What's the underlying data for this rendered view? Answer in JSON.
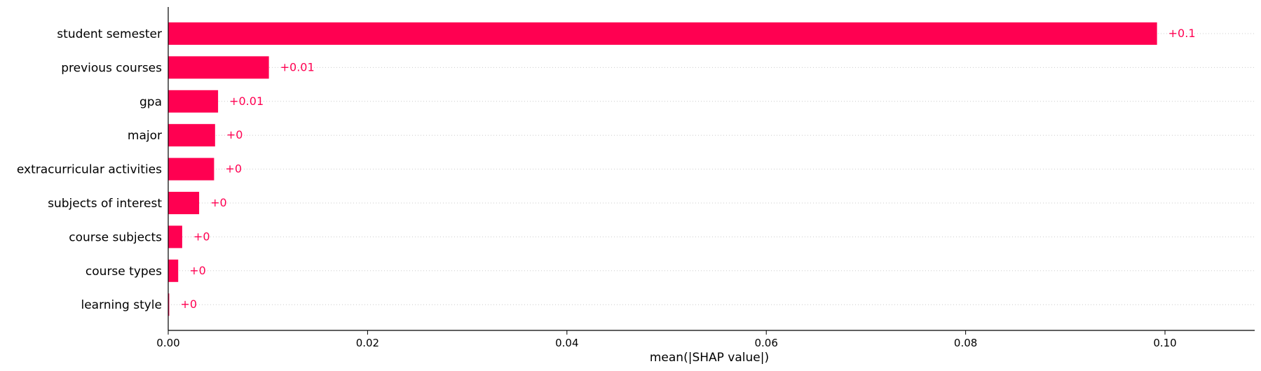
{
  "chart_data": {
    "type": "bar",
    "orientation": "horizontal",
    "categories": [
      "student semester",
      "previous courses",
      "gpa",
      "major",
      "extracurricular activities",
      "subjects of interest",
      "course subjects",
      "course types",
      "learning style"
    ],
    "values": [
      0.0992,
      0.0101,
      0.005,
      0.0047,
      0.0046,
      0.0031,
      0.0014,
      0.001,
      0.0001
    ],
    "data_labels": [
      "+0.1",
      "+0.01",
      "+0.01",
      "+0",
      "+0",
      "+0",
      "+0",
      "+0",
      "+0"
    ],
    "xlabel": "mean(|SHAP value|)",
    "ylabel": "",
    "title": "",
    "xlim": [
      0,
      0.109
    ],
    "xticks": [
      0.0,
      0.02,
      0.04,
      0.06,
      0.08,
      0.1
    ],
    "xtick_labels": [
      "0.00",
      "0.02",
      "0.04",
      "0.06",
      "0.08",
      "0.10"
    ],
    "grid": "horizontal dotted guide per row",
    "legend": "none",
    "colors": {
      "bar": "#ff0051",
      "data_label": "#ff0051",
      "axis": "#000000",
      "grid": "#cccccc"
    }
  }
}
